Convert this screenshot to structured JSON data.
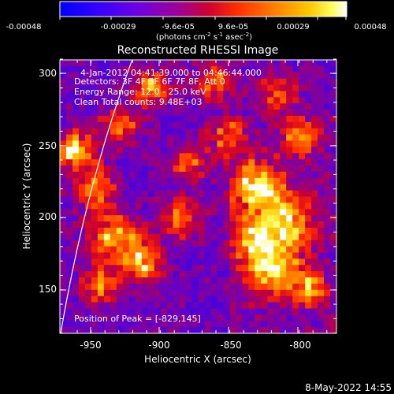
{
  "colorbar": {
    "tick_labels": [
      "-0.00048",
      "-0.00029",
      "-9.6e-05",
      "9.6e-05",
      "0.00029",
      "0.00048"
    ],
    "unit_label": "(photons cm",
    "unit_exp1": "-2",
    "unit_mid": " s",
    "unit_exp2": "-1",
    "unit_tail": " asec",
    "unit_exp3": "-2",
    "unit_close": ")",
    "colors": [
      "#0000ff",
      "#3a00ff",
      "#8a00d0",
      "#b000a0",
      "#e00020",
      "#ff4000",
      "#ff9000",
      "#ffd000",
      "#ffff80",
      "#ffffff"
    ]
  },
  "plot": {
    "title": "Reconstructed RHESSI Image",
    "info_lines": [
      "4-Jan-2012 04:41:39.000 to 04:46:44.000",
      "Detectors: 3F 4F 5F 6F 7F 8F, Att 0",
      "Energy Range: 12.0 - 25.0 keV",
      "Clean      Total counts: 9.48E+03"
    ],
    "peak_label": "Position of Peak = [-829,145]",
    "xlabel": "Heliocentric X (arcsec)",
    "ylabel": "Heliocentric Y (arcsec)",
    "x_ticks": [
      "-950",
      "-900",
      "-850",
      "-800"
    ],
    "y_ticks": [
      "300",
      "250",
      "200",
      "150"
    ],
    "x_range": [
      -975,
      -775
    ],
    "y_range": [
      115,
      310
    ]
  },
  "footer": {
    "timestamp": "8-May-2022 14:55"
  }
}
